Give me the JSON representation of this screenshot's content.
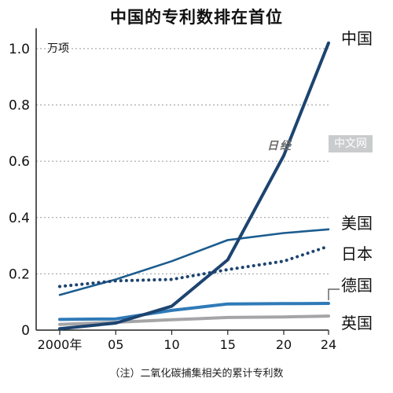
{
  "title": "中国的专利数排在首位",
  "note": "（注）二氧化碳捕集相关的累计专利数",
  "watermark": {
    "logo": "日经",
    "tag": "中文网"
  },
  "chart_data": {
    "type": "line",
    "title": "中国的专利数排在首位",
    "ylabel": "万项",
    "xlabel": "",
    "ylim": [
      0,
      1.05
    ],
    "yticks": [
      0,
      0.2,
      0.4,
      0.6,
      0.8,
      1.0
    ],
    "ytick_labels": [
      "0",
      "0.2",
      "0.4",
      "0.6",
      "0.8",
      "1.0"
    ],
    "xticks": [
      2000,
      2005,
      2010,
      2015,
      2020,
      2024
    ],
    "xtick_labels": [
      "2000年",
      "05",
      "10",
      "15",
      "20",
      "24"
    ],
    "grid": "horizontal dotted",
    "legend": "direct labels at right end of lines",
    "series": [
      {
        "name": "中国",
        "color": "#1d4470",
        "style": "solid-thick",
        "x": [
          2000,
          2005,
          2010,
          2015,
          2020,
          2024
        ],
        "values": [
          0.005,
          0.025,
          0.085,
          0.25,
          0.62,
          1.02
        ]
      },
      {
        "name": "美国",
        "color": "#1b5c8f",
        "style": "solid",
        "x": [
          2000,
          2005,
          2010,
          2015,
          2020,
          2024
        ],
        "values": [
          0.125,
          0.18,
          0.245,
          0.32,
          0.345,
          0.358
        ]
      },
      {
        "name": "日本",
        "color": "#1d4470",
        "style": "dotted",
        "x": [
          2000,
          2005,
          2010,
          2015,
          2020,
          2024
        ],
        "values": [
          0.155,
          0.175,
          0.18,
          0.215,
          0.245,
          0.298
        ]
      },
      {
        "name": "德国",
        "color": "#2f7ab8",
        "style": "solid-thick",
        "x": [
          2000,
          2005,
          2010,
          2015,
          2020,
          2024
        ],
        "values": [
          0.038,
          0.04,
          0.07,
          0.093,
          0.094,
          0.095
        ]
      },
      {
        "name": "英国",
        "color": "#a5a5a8",
        "style": "solid-thick",
        "x": [
          2000,
          2005,
          2010,
          2015,
          2020,
          2024
        ],
        "values": [
          0.02,
          0.028,
          0.037,
          0.045,
          0.047,
          0.05
        ]
      }
    ]
  }
}
